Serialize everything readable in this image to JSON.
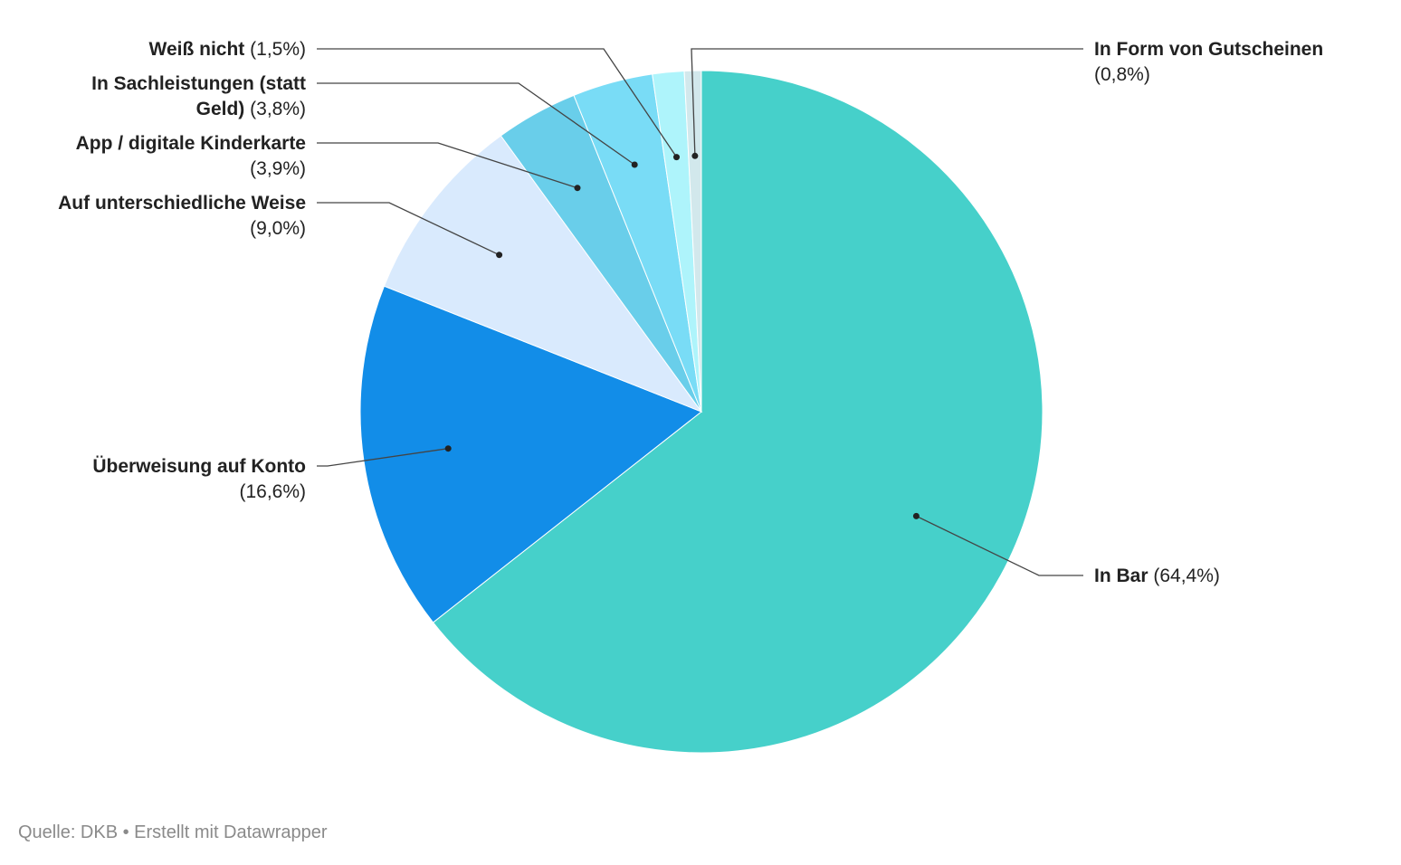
{
  "chart_data": {
    "type": "pie",
    "title": "",
    "slices": [
      {
        "name": "In Bar",
        "value_label": "(64,4%)",
        "value": 64.4,
        "color": "#46d0ca"
      },
      {
        "name": "Überweisung auf Konto",
        "value_label": "(16,6%)",
        "value": 16.6,
        "color": "#128de8"
      },
      {
        "name": "Auf unterschiedliche Weise",
        "value_label": "(9,0%)",
        "value": 9.0,
        "color": "#d9eafd"
      },
      {
        "name": "App / digitale Kinderkarte",
        "value_label": "(3,9%)",
        "value": 3.9,
        "color": "#69ceea"
      },
      {
        "name": "In Sachleistungen (statt Geld)",
        "name_lines": [
          "In Sachleistungen (statt",
          "Geld)"
        ],
        "value_label": "(3,8%)",
        "value": 3.8,
        "color": "#79dcf6"
      },
      {
        "name": "Weiß nicht",
        "value_label": "(1,5%)",
        "value": 1.5,
        "color": "#aef4fb"
      },
      {
        "name": "In Form von Gutscheinen",
        "value_label": "(0,8%)",
        "value": 0.8,
        "color": "#d2e8ec"
      }
    ],
    "legend": "none",
    "data_labels": "outside with leader lines"
  },
  "footer": {
    "source": "Quelle: DKB • Erstellt mit Datawrapper"
  }
}
